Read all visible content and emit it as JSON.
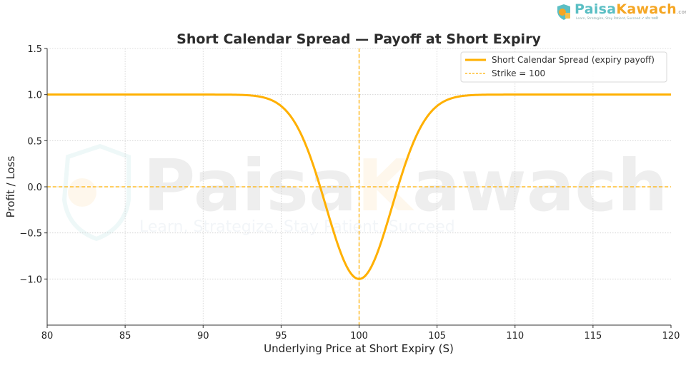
{
  "brand": {
    "name_part1": "Paisa",
    "name_part2": "Kawach",
    "suffix": ".com",
    "tagline": "Learn, Strategize, Stay Patient, Succeed ✔ जीत पक्की"
  },
  "chart_data": {
    "type": "line",
    "title": "Short Calendar Spread — Payoff at Short Expiry",
    "xlabel": "Underlying Price at Short Expiry (S)",
    "ylabel": "Profit / Loss",
    "xlim": [
      80,
      120
    ],
    "ylim": [
      -1.5,
      1.5
    ],
    "xticks": [
      80,
      85,
      90,
      95,
      100,
      105,
      110,
      115,
      120
    ],
    "xtick_labels": [
      "80",
      "85",
      "90",
      "95",
      "100",
      "105",
      "110",
      "115",
      "120"
    ],
    "yticks": [
      1.5,
      1.0,
      0.5,
      0.0,
      -0.5,
      -1.0
    ],
    "ytick_labels": [
      "1.5",
      "1.0",
      "0.5",
      "0.0",
      "−0.5",
      "−1.0"
    ],
    "grid": true,
    "legend_position": "upper right",
    "series": [
      {
        "name": "Short Calendar Spread (expiry payoff)",
        "color": "#ffb000",
        "style": "solid",
        "x": [
          80,
          90,
          92,
          93,
          94,
          95,
          96,
          97,
          97.5,
          98,
          99,
          100,
          101,
          102,
          102.5,
          103,
          104,
          105,
          106,
          107,
          108,
          110,
          120
        ],
        "y": [
          1.0,
          1.0,
          0.99,
          0.97,
          0.92,
          0.83,
          0.64,
          0.31,
          0.1,
          -0.08,
          -0.78,
          -1.0,
          -0.78,
          -0.08,
          0.1,
          0.31,
          0.64,
          0.83,
          0.92,
          0.97,
          0.99,
          1.0,
          1.0
        ]
      },
      {
        "name": "Strike = 100",
        "color": "#ffb000",
        "style": "dashed",
        "x": [
          100,
          100
        ],
        "y": [
          -1.5,
          1.5
        ]
      }
    ],
    "annotations": [
      {
        "type": "hline",
        "y": 0.0,
        "style": "dashed",
        "color": "#ffb000"
      }
    ]
  }
}
